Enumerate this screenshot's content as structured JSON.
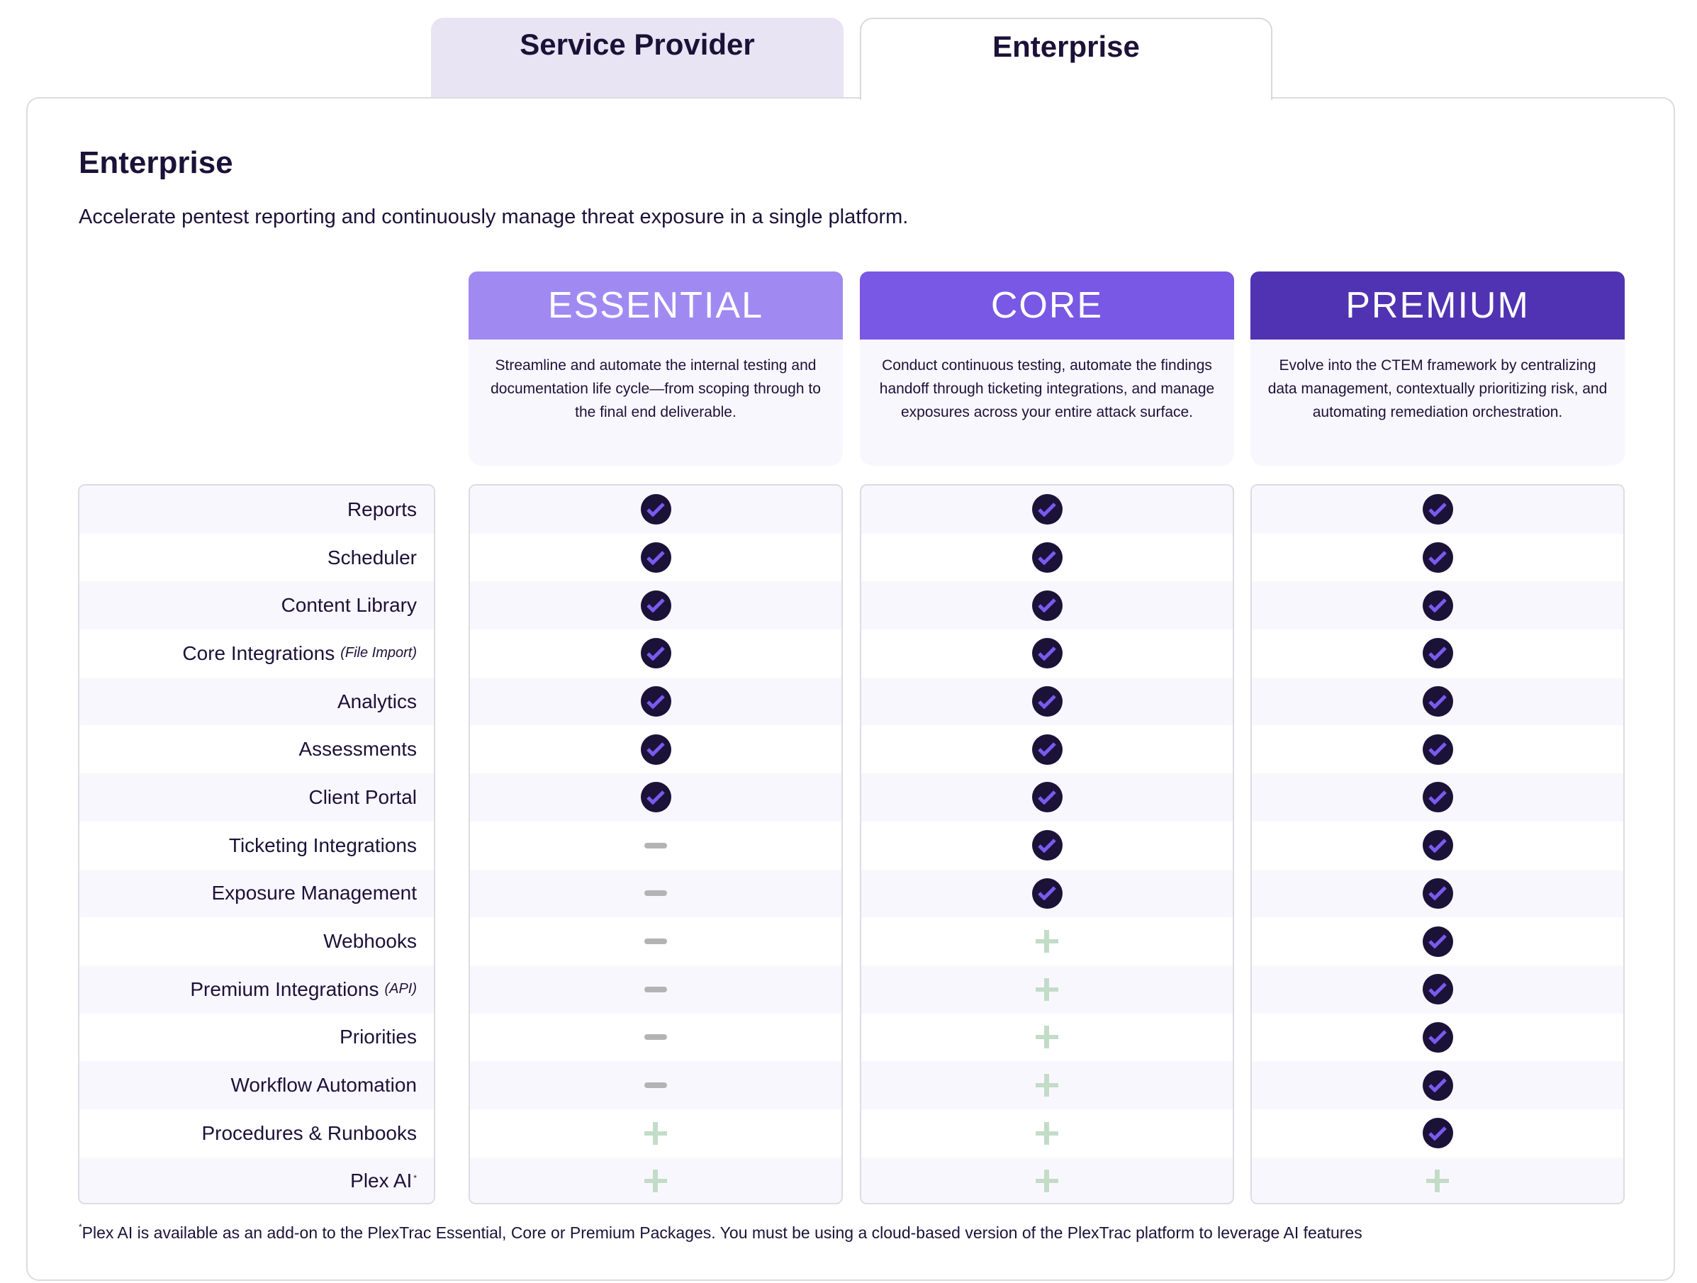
{
  "tabs": [
    {
      "label": "Service Provider",
      "active": false
    },
    {
      "label": "Enterprise",
      "active": true
    }
  ],
  "section": {
    "title": "Enterprise",
    "subtitle": "Accelerate pentest reporting and continuously manage threat exposure in a single platform."
  },
  "plans": [
    {
      "name": "ESSENTIAL",
      "color": "#a08af2",
      "description": "Streamline and automate the internal testing and documentation life cycle—from scoping through to the final end deliverable."
    },
    {
      "name": "CORE",
      "color": "#7858e4",
      "description": "Conduct continuous testing, automate the findings handoff through ticketing integrations, and manage exposures across your entire attack surface."
    },
    {
      "name": "PREMIUM",
      "color": "#5033b3",
      "description": "Evolve into the CTEM framework by centralizing data management, contextually prioritizing risk, and automating remediation orchestration."
    }
  ],
  "legend_icons": {
    "included": "check-circle-icon",
    "not_included": "dash-icon",
    "add_on": "plus-icon"
  },
  "features": [
    {
      "label": "Reports",
      "note": "",
      "marker": "",
      "values": [
        "included",
        "included",
        "included"
      ]
    },
    {
      "label": "Scheduler",
      "note": "",
      "marker": "",
      "values": [
        "included",
        "included",
        "included"
      ]
    },
    {
      "label": "Content Library",
      "note": "",
      "marker": "",
      "values": [
        "included",
        "included",
        "included"
      ]
    },
    {
      "label": "Core Integrations",
      "note": "(File Import)",
      "marker": "",
      "values": [
        "included",
        "included",
        "included"
      ]
    },
    {
      "label": "Analytics",
      "note": "",
      "marker": "",
      "values": [
        "included",
        "included",
        "included"
      ]
    },
    {
      "label": "Assessments",
      "note": "",
      "marker": "",
      "values": [
        "included",
        "included",
        "included"
      ]
    },
    {
      "label": "Client Portal",
      "note": "",
      "marker": "",
      "values": [
        "included",
        "included",
        "included"
      ]
    },
    {
      "label": "Ticketing Integrations",
      "note": "",
      "marker": "",
      "values": [
        "not_included",
        "included",
        "included"
      ]
    },
    {
      "label": "Exposure Management",
      "note": "",
      "marker": "",
      "values": [
        "not_included",
        "included",
        "included"
      ]
    },
    {
      "label": "Webhooks",
      "note": "",
      "marker": "",
      "values": [
        "not_included",
        "add_on",
        "included"
      ]
    },
    {
      "label": "Premium Integrations",
      "note": "(API)",
      "marker": "",
      "values": [
        "not_included",
        "add_on",
        "included"
      ]
    },
    {
      "label": "Priorities",
      "note": "",
      "marker": "",
      "values": [
        "not_included",
        "add_on",
        "included"
      ]
    },
    {
      "label": "Workflow Automation",
      "note": "",
      "marker": "",
      "values": [
        "not_included",
        "add_on",
        "included"
      ]
    },
    {
      "label": "Procedures & Runbooks",
      "note": "",
      "marker": "",
      "values": [
        "add_on",
        "add_on",
        "included"
      ]
    },
    {
      "label": "Plex AI",
      "note": "",
      "marker": "*",
      "values": [
        "add_on",
        "add_on",
        "add_on"
      ]
    }
  ],
  "footnote": {
    "marker": "*",
    "text": "Plex AI is available as an add-on to the PlexTrac Essential, Core or Premium Packages. You must be using a cloud-based version of the PlexTrac platform to leverage AI features"
  }
}
